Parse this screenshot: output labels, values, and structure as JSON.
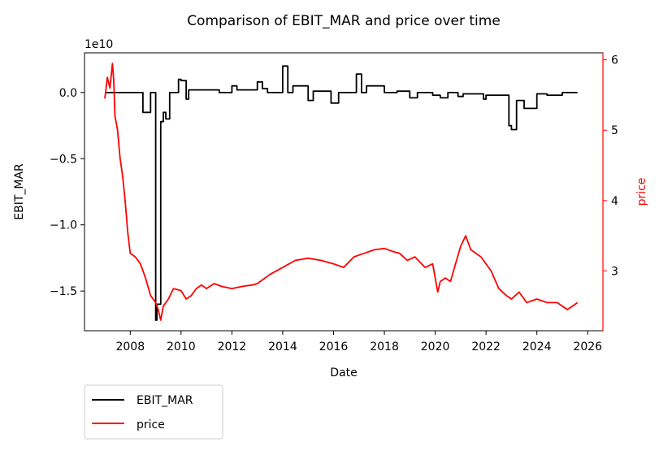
{
  "chart_data": {
    "type": "line",
    "title": "Comparison of EBIT_MAR and price over time",
    "xlabel": "Date",
    "x_ticks": [
      "2008",
      "2010",
      "2012",
      "2014",
      "2016",
      "2018",
      "2020",
      "2022",
      "2024",
      "2026"
    ],
    "left_axis": {
      "label": "EBIT_MAR",
      "offset_text": "1e10",
      "ticks": [
        "0.0",
        "−0.5",
        "−1.0",
        "−1.5"
      ],
      "tick_values": [
        0.0,
        -0.5,
        -1.0,
        -1.5
      ],
      "ylim": [
        -1.8,
        0.3
      ]
    },
    "right_axis": {
      "label": "price",
      "color": "#ff0000",
      "ticks": [
        "3",
        "4",
        "5",
        "6"
      ],
      "tick_values": [
        3,
        4,
        5,
        6
      ],
      "ylim": [
        2.15,
        6.1
      ]
    },
    "xlim": [
      2006.2,
      2026.6
    ],
    "legend": {
      "placement": "below-left",
      "entries": [
        "EBIT_MAR",
        "price"
      ]
    },
    "grid": false,
    "series": [
      {
        "name": "EBIT_MAR",
        "axis": "left",
        "color": "#000000",
        "x": [
          2007.0,
          2008.5,
          2008.5,
          2008.8,
          2008.8,
          2009.0,
          2009.0,
          2009.05,
          2009.05,
          2009.2,
          2009.2,
          2009.3,
          2009.3,
          2009.4,
          2009.4,
          2009.55,
          2009.55,
          2009.9,
          2009.9,
          2010.0,
          2010.0,
          2010.2,
          2010.2,
          2010.3,
          2010.3,
          2011.5,
          2011.5,
          2012.0,
          2012.0,
          2012.2,
          2012.2,
          2013.0,
          2013.0,
          2013.2,
          2013.2,
          2013.4,
          2013.4,
          2014.0,
          2014.0,
          2014.2,
          2014.2,
          2014.4,
          2014.4,
          2015.0,
          2015.0,
          2015.2,
          2015.2,
          2015.9,
          2015.9,
          2016.2,
          2016.2,
          2016.9,
          2016.9,
          2017.1,
          2017.1,
          2017.3,
          2017.3,
          2018.0,
          2018.0,
          2018.5,
          2018.5,
          2019.0,
          2019.0,
          2019.3,
          2019.3,
          2019.9,
          2019.9,
          2020.2,
          2020.2,
          2020.5,
          2020.5,
          2020.9,
          2020.9,
          2021.1,
          2021.1,
          2021.9,
          2021.9,
          2022.0,
          2022.0,
          2022.9,
          2022.9,
          2023.0,
          2023.0,
          2023.2,
          2023.2,
          2023.5,
          2023.5,
          2024.0,
          2024.0,
          2024.4,
          2024.4,
          2025.0,
          2025.0,
          2025.6
        ],
        "y": [
          0.0,
          0.0,
          -0.15,
          -0.15,
          0.0,
          0.0,
          -1.72,
          -1.72,
          -1.6,
          -1.6,
          -0.22,
          -0.22,
          -0.15,
          -0.15,
          -0.2,
          -0.2,
          0.0,
          0.0,
          0.1,
          0.1,
          0.09,
          0.09,
          -0.05,
          -0.05,
          0.02,
          0.02,
          0.0,
          0.0,
          0.05,
          0.05,
          0.02,
          0.02,
          0.08,
          0.08,
          0.03,
          0.03,
          0.0,
          0.0,
          0.2,
          0.2,
          0.0,
          0.0,
          0.05,
          0.05,
          -0.06,
          -0.06,
          0.01,
          0.01,
          -0.08,
          -0.08,
          0.0,
          0.0,
          0.14,
          0.14,
          0.0,
          0.0,
          0.05,
          0.05,
          0.0,
          0.0,
          0.01,
          0.01,
          -0.04,
          -0.04,
          0.0,
          0.0,
          -0.02,
          -0.02,
          -0.04,
          -0.04,
          0.0,
          0.0,
          -0.03,
          -0.03,
          -0.01,
          -0.01,
          -0.05,
          -0.05,
          -0.02,
          -0.02,
          -0.25,
          -0.25,
          -0.28,
          -0.28,
          -0.06,
          -0.06,
          -0.12,
          -0.12,
          -0.01,
          -0.01,
          -0.02,
          -0.02,
          0.0,
          0.0
        ]
      },
      {
        "name": "price",
        "axis": "right",
        "color": "#ff0000",
        "x": [
          2007.0,
          2007.1,
          2007.2,
          2007.3,
          2007.35,
          2007.4,
          2007.5,
          2007.6,
          2007.7,
          2007.8,
          2007.9,
          2008.0,
          2008.2,
          2008.4,
          2008.6,
          2008.8,
          2009.0,
          2009.1,
          2009.2,
          2009.3,
          2009.5,
          2009.7,
          2010.0,
          2010.2,
          2010.4,
          2010.6,
          2010.8,
          2011.0,
          2011.3,
          2011.6,
          2012.0,
          2012.4,
          2012.8,
          2013.0,
          2013.5,
          2014.0,
          2014.5,
          2015.0,
          2015.5,
          2016.0,
          2016.4,
          2016.8,
          2017.2,
          2017.6,
          2018.0,
          2018.3,
          2018.6,
          2018.9,
          2019.2,
          2019.6,
          2019.9,
          2020.1,
          2020.2,
          2020.4,
          2020.6,
          2020.8,
          2021.0,
          2021.2,
          2021.4,
          2021.8,
          2022.2,
          2022.5,
          2022.8,
          2023.0,
          2023.3,
          2023.6,
          2024.0,
          2024.4,
          2024.8,
          2025.0,
          2025.2,
          2025.4,
          2025.6
        ],
        "y": [
          5.45,
          5.75,
          5.6,
          5.95,
          5.7,
          5.2,
          5.0,
          4.6,
          4.35,
          4.0,
          3.55,
          3.25,
          3.2,
          3.1,
          2.9,
          2.65,
          2.55,
          2.45,
          2.3,
          2.5,
          2.6,
          2.75,
          2.72,
          2.6,
          2.65,
          2.75,
          2.8,
          2.75,
          2.82,
          2.78,
          2.75,
          2.78,
          2.8,
          2.82,
          2.95,
          3.05,
          3.15,
          3.18,
          3.15,
          3.1,
          3.05,
          3.2,
          3.25,
          3.3,
          3.32,
          3.28,
          3.25,
          3.15,
          3.2,
          3.05,
          3.1,
          2.7,
          2.85,
          2.9,
          2.85,
          3.1,
          3.35,
          3.5,
          3.3,
          3.2,
          3.0,
          2.75,
          2.65,
          2.6,
          2.7,
          2.55,
          2.6,
          2.55,
          2.55,
          2.5,
          2.45,
          2.5,
          2.55
        ]
      }
    ]
  }
}
